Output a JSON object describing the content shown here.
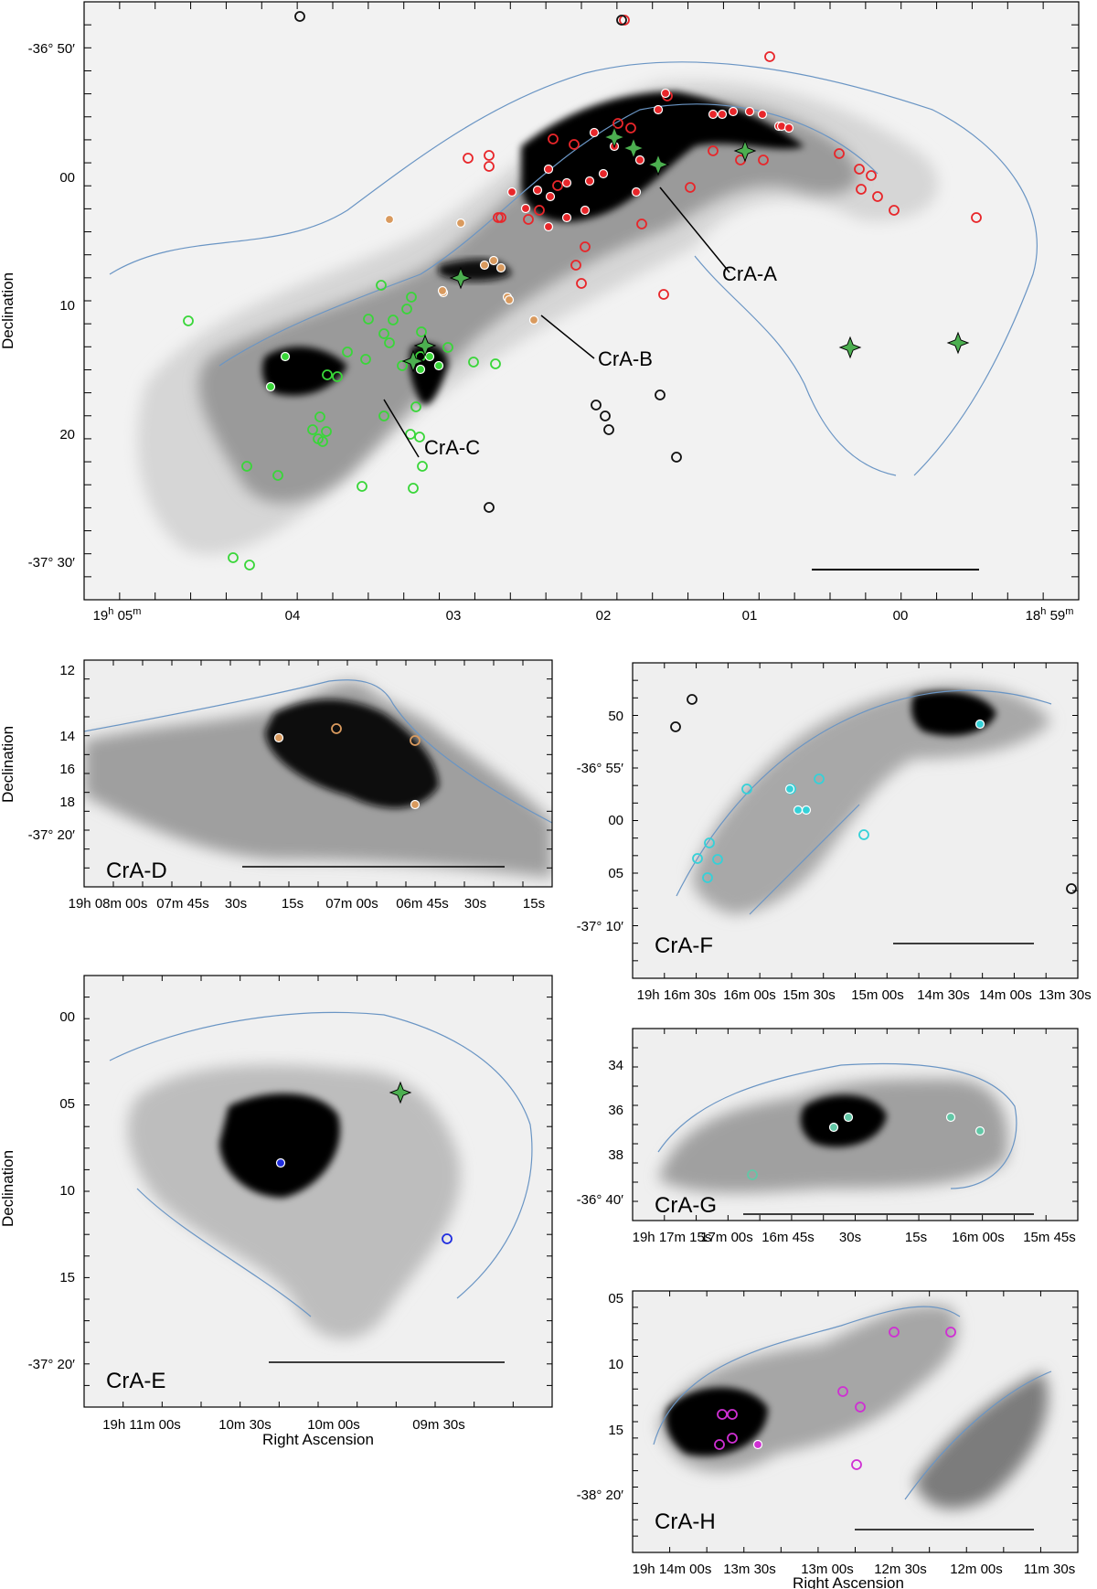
{
  "figure": {
    "colors": {
      "contour": "#6a95c4",
      "cloud_dark": "#000000",
      "cloud_mid": "#6f6f6f",
      "cloud_light": "#c9c9c9",
      "background": "#f1f1f1",
      "scalebar_white": "#ffffff",
      "red": "#e8262a",
      "orange": "#d99a5e",
      "green": "#39d639",
      "black": "#111111",
      "cyan": "#35d1d8",
      "teal": "#62c7a6",
      "blue": "#1f2ddf",
      "magenta": "#cf2fd3",
      "star": "#4caf50"
    },
    "main": {
      "ylabel": "Declination",
      "y_ticks": [
        "-36° 50′",
        "00",
        "10",
        "20",
        "-37° 30′"
      ],
      "x_ticks": [
        {
          "h": "19",
          "hs": "h",
          "m": "05",
          "ms": "m"
        },
        {
          "m": "04"
        },
        {
          "m": "03"
        },
        {
          "m": "02"
        },
        {
          "m": "01"
        },
        {
          "m": "00"
        },
        {
          "h": "18",
          "hs": "h",
          "m": "59",
          "ms": "m"
        }
      ],
      "regions": [
        "CrA-A",
        "CrA-B",
        "CrA-C"
      ]
    },
    "panel_d": {
      "label": "CrA-D",
      "ylabel": "Declination",
      "y_ticks": [
        "12",
        "14",
        "16",
        "18",
        "-37° 20′"
      ],
      "x_ticks": [
        "19h 08m 00s",
        "07m 45s",
        "30s",
        "15s",
        "07m 00s",
        "06m 45s",
        "30s",
        "15s"
      ]
    },
    "panel_e": {
      "label": "CrA-E",
      "ylabel": "Declination",
      "xlabel": "Right Ascension",
      "y_ticks": [
        "00",
        "05",
        "10",
        "15",
        "-37° 20′"
      ],
      "x_ticks": [
        "19h 11m 00s",
        "10m 30s",
        "10m 00s",
        "09m 30s"
      ]
    },
    "panel_f": {
      "label": "CrA-F",
      "y_ticks": [
        "50",
        "-36° 55′",
        "00",
        "05",
        "-37° 10′"
      ],
      "x_ticks": [
        "19h 16m 30s",
        "16m 00s",
        "15m 30s",
        "15m 00s",
        "14m 30s",
        "14m 00s",
        "13m 30s"
      ]
    },
    "panel_g": {
      "label": "CrA-G",
      "y_ticks": [
        "34",
        "36",
        "38",
        "-36° 40′"
      ],
      "x_ticks": [
        "19h 17m 15s",
        "17m 00s",
        "16m 45s",
        "30s",
        "15s",
        "16m 00s",
        "15m 45s"
      ]
    },
    "panel_h": {
      "label": "CrA-H",
      "xlabel": "Right Ascension",
      "y_ticks": [
        "05",
        "10",
        "15",
        "-38° 20′"
      ],
      "x_ticks": [
        "19h 14m 00s",
        "13m 30s",
        "13m 00s",
        "12m 30s",
        "12m 00s",
        "11m 30s"
      ]
    }
  }
}
